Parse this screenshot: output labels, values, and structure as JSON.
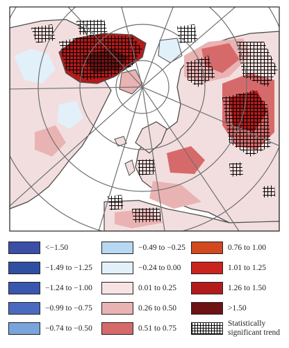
{
  "map": {
    "projection": "polar-stereographic",
    "hatch_color": "#000000",
    "ocean_color": "#ffffff",
    "land_neutral_color": "#f7e9e9",
    "coastline_color": "#4a4a4a",
    "graticule_color": "#6f6f6f"
  },
  "legend": {
    "items": [
      {
        "label": "<−1.50",
        "color": "#3b4fa6"
      },
      {
        "label": "−1.49 to −1.25",
        "color": "#2f4fa3"
      },
      {
        "label": "−1.24 to −1.00",
        "color": "#3a57b0"
      },
      {
        "label": "−0.99 to −0.75",
        "color": "#4a6ac0"
      },
      {
        "label": "−0.74 to −0.50",
        "color": "#7aa4dc"
      },
      {
        "label": "−0.49 to −0.25",
        "color": "#b8d8f1"
      },
      {
        "label": "−0.24 to 0.00",
        "color": "#e2f0fa"
      },
      {
        "label": "0.01 to 0.25",
        "color": "#f7e3e3"
      },
      {
        "label": "0.26 to 0.50",
        "color": "#eab3b3"
      },
      {
        "label": "0.51 to 0.75",
        "color": "#d66a6a"
      },
      {
        "label": "0.76 to 1.00",
        "color": "#d2481f"
      },
      {
        "label": "1.01 to 1.25",
        "color": "#c9251d"
      },
      {
        "label": "1.26 to 1.50",
        "color": "#b31b1b"
      },
      {
        "label": ">1.50",
        "color": "#6e1214"
      },
      {
        "label": "Statistically significant trend",
        "color": "hatch"
      }
    ]
  }
}
